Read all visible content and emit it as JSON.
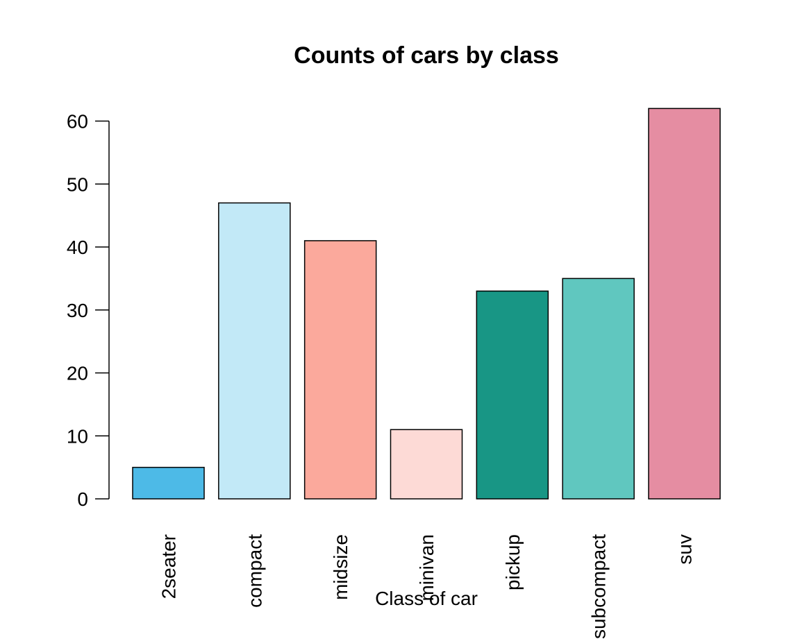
{
  "chart_data": {
    "type": "bar",
    "title": "Counts of cars by class",
    "xlabel": "Class of car",
    "ylabel": "",
    "ylim": [
      0,
      62
    ],
    "yticks": [
      0,
      10,
      20,
      30,
      40,
      50,
      60
    ],
    "categories": [
      "2seater",
      "compact",
      "midsize",
      "minivan",
      "pickup",
      "subcompact",
      "suv"
    ],
    "values": [
      5,
      47,
      41,
      11,
      33,
      35,
      62
    ],
    "colors": [
      "#4DBAE7",
      "#C2E9F7",
      "#FBA99C",
      "#FDDAD6",
      "#189685",
      "#60C7BF",
      "#E58DA2"
    ],
    "bar_border_color": "#000000",
    "tick_label_orientation": "vertical",
    "grid": false,
    "legend": "none"
  }
}
